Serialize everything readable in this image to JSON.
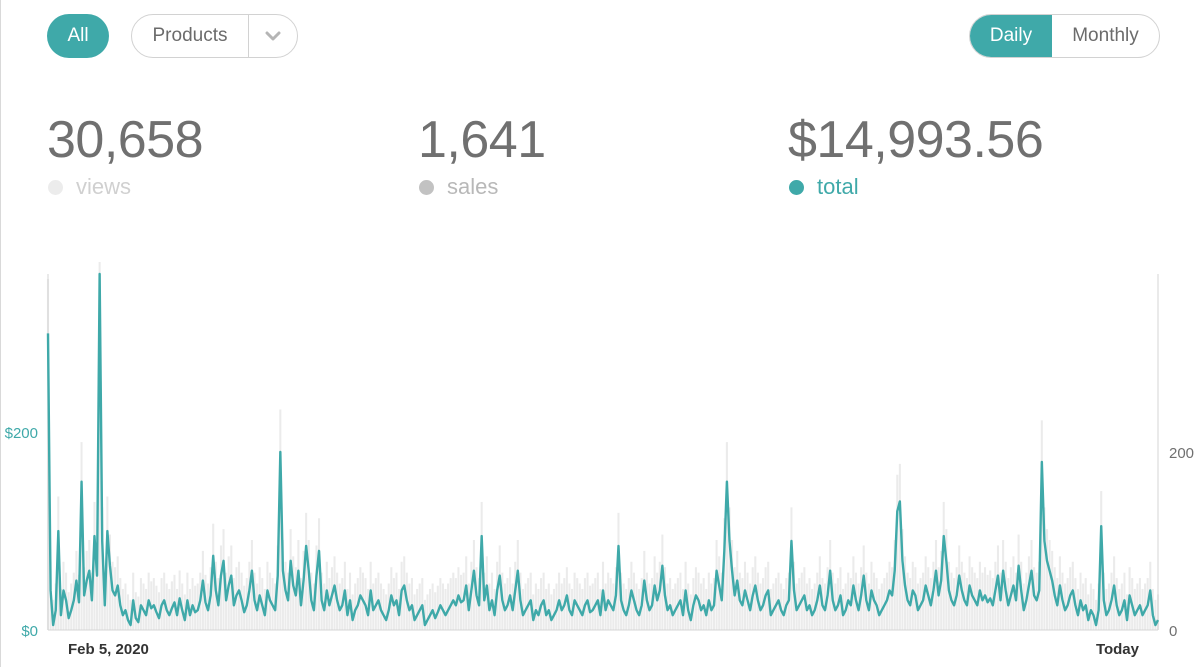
{
  "toolbar": {
    "all_label": "All",
    "products_label": "Products",
    "daily_label": "Daily",
    "monthly_label": "Monthly"
  },
  "stats": {
    "views": {
      "value": "30,658",
      "label": "views"
    },
    "sales": {
      "value": "1,641",
      "label": "sales"
    },
    "total": {
      "value": "$14,993.56",
      "label": "total"
    }
  },
  "colors": {
    "accent": "#3fa9a9",
    "bars": "#ebebeb",
    "axis": "#d6d6d6",
    "text": "#707070"
  },
  "icons": {
    "dropdown": "chevron-down-icon"
  },
  "chart_data": {
    "type": "line",
    "x_start_label": "Feb 5, 2020",
    "x_end_label": "Today",
    "left_axis": {
      "ticks": [
        0,
        200
      ],
      "tick_labels": [
        "$0",
        "$200"
      ],
      "ylim": [
        0,
        360
      ]
    },
    "right_axis": {
      "ticks": [
        0,
        200
      ],
      "tick_labels": [
        "0",
        "200"
      ],
      "ylim": [
        0,
        400
      ]
    },
    "series": [
      {
        "axis": "left",
        "style": "line",
        "values": [
          300,
          40,
          5,
          20,
          100,
          15,
          40,
          30,
          12,
          20,
          30,
          50,
          28,
          150,
          35,
          50,
          60,
          30,
          95,
          55,
          360,
          90,
          25,
          100,
          65,
          40,
          35,
          45,
          25,
          15,
          20,
          10,
          5,
          30,
          12,
          8,
          25,
          20,
          15,
          30,
          22,
          25,
          18,
          12,
          25,
          30,
          20,
          15,
          22,
          28,
          15,
          32,
          20,
          10,
          30,
          15,
          25,
          18,
          20,
          30,
          50,
          28,
          20,
          35,
          75,
          40,
          25,
          55,
          70,
          30,
          45,
          55,
          25,
          35,
          40,
          30,
          18,
          25,
          40,
          60,
          30,
          20,
          35,
          25,
          15,
          40,
          30,
          25,
          20,
          55,
          180,
          60,
          40,
          30,
          70,
          45,
          35,
          60,
          25,
          50,
          85,
          60,
          30,
          20,
          55,
          80,
          30,
          20,
          40,
          25,
          35,
          45,
          30,
          20,
          25,
          40,
          15,
          30,
          10,
          20,
          25,
          35,
          30,
          25,
          15,
          40,
          20,
          25,
          30,
          20,
          15,
          10,
          20,
          35,
          25,
          30,
          15,
          40,
          45,
          30,
          20,
          25,
          10,
          15,
          20,
          25,
          5,
          10,
          15,
          20,
          12,
          18,
          25,
          20,
          15,
          20,
          25,
          30,
          25,
          35,
          28,
          30,
          45,
          20,
          40,
          60,
          35,
          25,
          95,
          30,
          45,
          20,
          30,
          15,
          40,
          55,
          30,
          20,
          25,
          35,
          20,
          40,
          60,
          30,
          15,
          20,
          25,
          30,
          10,
          20,
          15,
          25,
          30,
          15,
          20,
          10,
          15,
          20,
          30,
          20,
          25,
          35,
          20,
          15,
          30,
          25,
          20,
          15,
          25,
          30,
          18,
          20,
          25,
          30,
          15,
          40,
          20,
          30,
          25,
          20,
          35,
          85,
          30,
          20,
          15,
          25,
          40,
          30,
          20,
          15,
          25,
          50,
          30,
          20,
          25,
          45,
          30,
          40,
          65,
          35,
          20,
          25,
          15,
          20,
          25,
          30,
          15,
          40,
          20,
          10,
          25,
          35,
          30,
          20,
          25,
          15,
          30,
          20,
          25,
          60,
          45,
          30,
          80,
          150,
          90,
          60,
          35,
          50,
          30,
          25,
          40,
          30,
          20,
          35,
          45,
          30,
          20,
          25,
          35,
          40,
          15,
          20,
          25,
          30,
          20,
          15,
          25,
          30,
          90,
          40,
          20,
          25,
          30,
          35,
          20,
          25,
          15,
          20,
          30,
          45,
          25,
          20,
          35,
          60,
          30,
          20,
          25,
          35,
          15,
          20,
          30,
          25,
          45,
          30,
          20,
          35,
          55,
          30,
          20,
          40,
          30,
          25,
          15,
          20,
          25,
          30,
          40,
          35,
          60,
          120,
          130,
          70,
          45,
          30,
          25,
          40,
          35,
          20,
          25,
          30,
          45,
          35,
          25,
          40,
          60,
          35,
          50,
          95,
          70,
          40,
          30,
          25,
          35,
          55,
          40,
          30,
          25,
          45,
          35,
          30,
          25,
          40,
          30,
          35,
          28,
          32,
          25,
          40,
          55,
          30,
          60,
          40,
          25,
          35,
          45,
          30,
          65,
          40,
          20,
          30,
          45,
          60,
          35,
          30,
          40,
          170,
          90,
          70,
          60,
          50,
          35,
          25,
          45,
          30,
          20,
          25,
          35,
          40,
          25,
          15,
          30,
          20,
          25,
          10,
          20,
          15,
          5,
          20,
          105,
          30,
          15,
          20,
          30,
          45,
          25,
          15,
          20,
          30,
          10,
          35,
          25,
          15,
          20,
          25,
          15,
          20,
          25,
          40,
          15,
          5,
          10
        ]
      }
    ]
  }
}
